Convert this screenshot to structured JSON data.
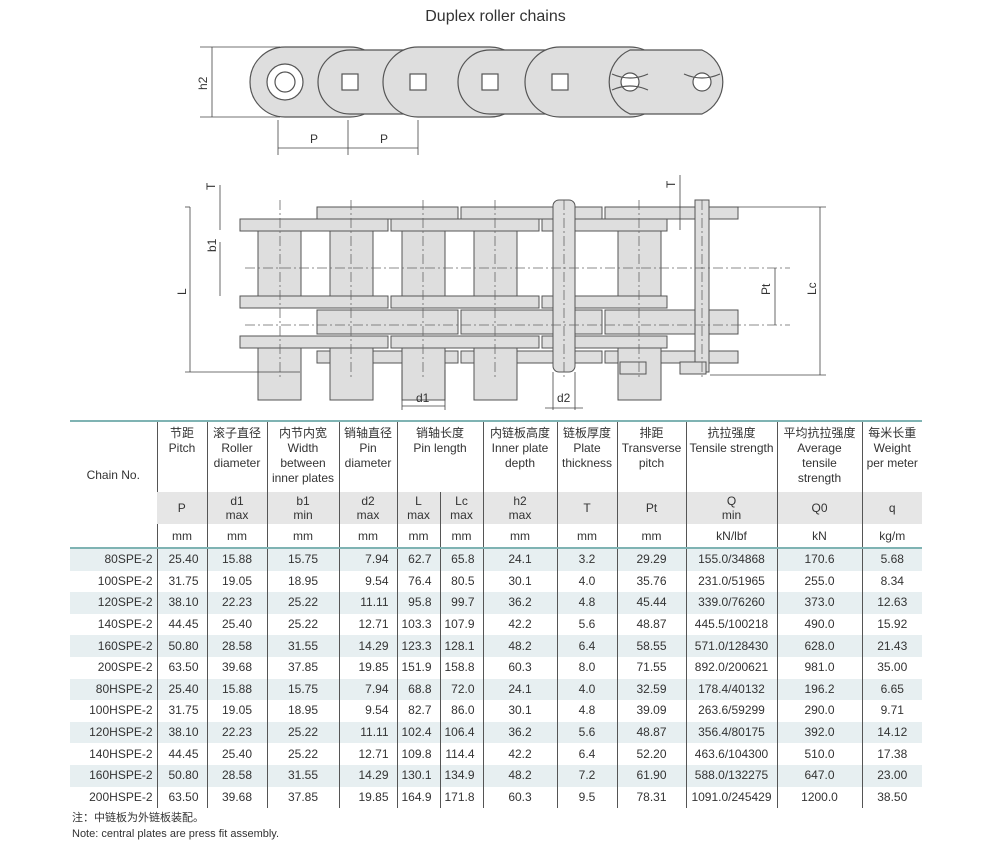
{
  "title": "Duplex roller chains",
  "diagram_labels": {
    "P": "P",
    "h2": "h2",
    "T": "T",
    "b1": "b1",
    "L": "L",
    "Pt": "Pt",
    "Lc": "Lc",
    "d1": "d1",
    "d2": "d2"
  },
  "table": {
    "chain_no_header": "Chain No.",
    "columns": [
      {
        "zh": "节距",
        "en": "Pitch",
        "sym": "P",
        "sub": "",
        "unit": "mm"
      },
      {
        "zh": "滚子直径",
        "en": "Roller diameter",
        "sym": "d1",
        "sub": "max",
        "unit": "mm"
      },
      {
        "zh": "内节内宽",
        "en": "Width between inner plates",
        "sym": "b1",
        "sub": "min",
        "unit": "mm"
      },
      {
        "zh": "销轴直径",
        "en": "Pin diameter",
        "sym": "d2",
        "sub": "max",
        "unit": "mm"
      },
      {
        "zh": "销轴长度",
        "en": "Pin length",
        "sym": "L",
        "sub": "max",
        "unit": "mm",
        "sym2": "Lc",
        "sub2": "max",
        "unit2": "mm"
      },
      {
        "zh": "内链板高度",
        "en": "Inner plate depth",
        "sym": "h2",
        "sub": "max",
        "unit": "mm"
      },
      {
        "zh": "链板厚度",
        "en": "Plate thickness",
        "sym": "T",
        "sub": "",
        "unit": "mm"
      },
      {
        "zh": "排距",
        "en": "Transverse pitch",
        "sym": "Pt",
        "sub": "",
        "unit": "mm"
      },
      {
        "zh": "抗拉强度",
        "en": "Tensile strength",
        "sym": "Q",
        "sub": "min",
        "unit": "kN/lbf"
      },
      {
        "zh": "平均抗拉强度",
        "en": "Average tensile strength",
        "sym": "Q0",
        "sub": "",
        "unit": "kN"
      },
      {
        "zh": "每米长重",
        "en": "Weight per meter",
        "sym": "q",
        "sub": "",
        "unit": "kg/m"
      }
    ],
    "rows": [
      [
        "80SPE-2",
        "25.40",
        "15.88",
        "15.75",
        "7.94",
        "62.7",
        "65.8",
        "24.1",
        "3.2",
        "29.29",
        "155.0/34868",
        "170.6",
        "5.68"
      ],
      [
        "100SPE-2",
        "31.75",
        "19.05",
        "18.95",
        "9.54",
        "76.4",
        "80.5",
        "30.1",
        "4.0",
        "35.76",
        "231.0/51965",
        "255.0",
        "8.34"
      ],
      [
        "120SPE-2",
        "38.10",
        "22.23",
        "25.22",
        "11.11",
        "95.8",
        "99.7",
        "36.2",
        "4.8",
        "45.44",
        "339.0/76260",
        "373.0",
        "12.63"
      ],
      [
        "140SPE-2",
        "44.45",
        "25.40",
        "25.22",
        "12.71",
        "103.3",
        "107.9",
        "42.2",
        "5.6",
        "48.87",
        "445.5/100218",
        "490.0",
        "15.92"
      ],
      [
        "160SPE-2",
        "50.80",
        "28.58",
        "31.55",
        "14.29",
        "123.3",
        "128.1",
        "48.2",
        "6.4",
        "58.55",
        "571.0/128430",
        "628.0",
        "21.43"
      ],
      [
        "200SPE-2",
        "63.50",
        "39.68",
        "37.85",
        "19.85",
        "151.9",
        "158.8",
        "60.3",
        "8.0",
        "71.55",
        "892.0/200621",
        "981.0",
        "35.00"
      ],
      [
        "80HSPE-2",
        "25.40",
        "15.88",
        "15.75",
        "7.94",
        "68.8",
        "72.0",
        "24.1",
        "4.0",
        "32.59",
        "178.4/40132",
        "196.2",
        "6.65"
      ],
      [
        "100HSPE-2",
        "31.75",
        "19.05",
        "18.95",
        "9.54",
        "82.7",
        "86.0",
        "30.1",
        "4.8",
        "39.09",
        "263.6/59299",
        "290.0",
        "9.71"
      ],
      [
        "120HSPE-2",
        "38.10",
        "22.23",
        "25.22",
        "11.11",
        "102.4",
        "106.4",
        "36.2",
        "5.6",
        "48.87",
        "356.4/80175",
        "392.0",
        "14.12"
      ],
      [
        "140HSPE-2",
        "44.45",
        "25.40",
        "25.22",
        "12.71",
        "109.8",
        "114.4",
        "42.2",
        "6.4",
        "52.20",
        "463.6/104300",
        "510.0",
        "17.38"
      ],
      [
        "160HSPE-2",
        "50.80",
        "28.58",
        "31.55",
        "14.29",
        "130.1",
        "134.9",
        "48.2",
        "7.2",
        "61.90",
        "588.0/132275",
        "647.0",
        "23.00"
      ],
      [
        "200HSPE-2",
        "63.50",
        "39.68",
        "37.85",
        "19.85",
        "164.9",
        "171.8",
        "60.3",
        "9.5",
        "78.31",
        "1091.0/245429",
        "1200.0",
        "38.50"
      ]
    ]
  },
  "notes": {
    "zh": "注：中链板为外链板装配。",
    "en": "Note: central plates are press fit assembly."
  }
}
